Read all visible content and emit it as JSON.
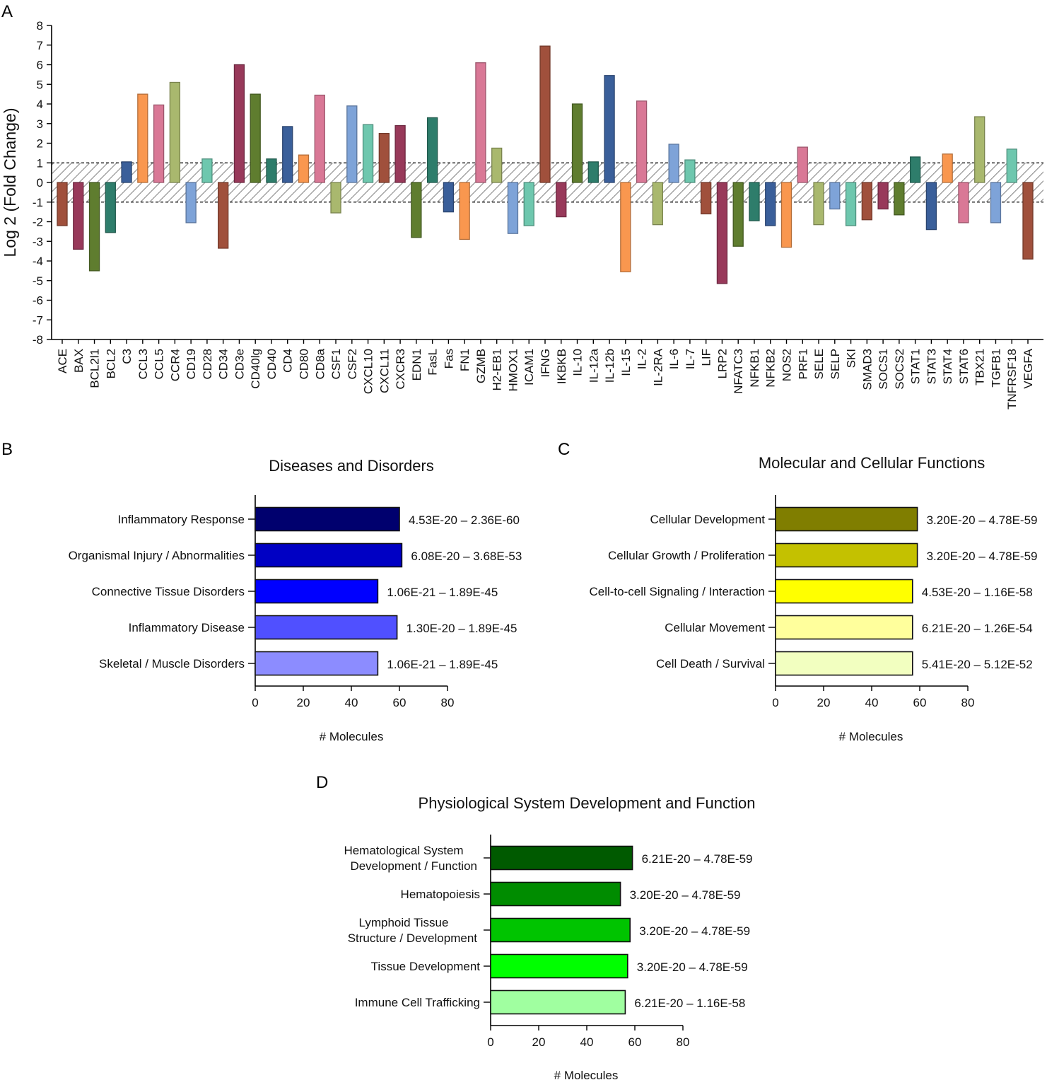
{
  "panels": {
    "a": "A",
    "b": "B",
    "c": "C",
    "d": "D"
  },
  "chart_data": [
    {
      "type": "bar",
      "panel": "A",
      "ylabel": "Log 2 (Fold Change)",
      "ylim": [
        -8,
        8
      ],
      "yticks": [
        8,
        7,
        6,
        5,
        4,
        3,
        2,
        1,
        0,
        -1,
        -2,
        -3,
        -4,
        -5,
        -6,
        -7,
        -8
      ],
      "threshold_band": [
        -1,
        1
      ],
      "palette": [
        "#a0503c",
        "#98395a",
        "#5f7d2f",
        "#2e7d6b",
        "#3a5f9a",
        "#f9974f",
        "#d97896",
        "#a9b86e",
        "#7ea3d8",
        "#6ec7ae"
      ],
      "categories": [
        "ACE",
        "BAX",
        "BCL2l1",
        "BCL2",
        "C3",
        "CCL3",
        "CCL5",
        "CCR4",
        "CD19",
        "CD28",
        "CD34",
        "CD3e",
        "CD40lg",
        "CD40",
        "CD4",
        "CD80",
        "CD8a",
        "CSF1",
        "CSF2",
        "CXCL10",
        "CXCL11",
        "CXCR3",
        "EDN1",
        "FasL",
        "Fas",
        "FN1",
        "GZMB",
        "H2-EB1",
        "HMOX1",
        "ICAM1",
        "IFNG",
        "IKBKB",
        "IL-10",
        "IL-12a",
        "IL-12b",
        "IL-15",
        "IL-2",
        "IL-2RA",
        "IL-6",
        "IL-7",
        "LIF",
        "LRP2",
        "NFATC3",
        "NFKB1",
        "NFKB2",
        "NOS2",
        "PRF1",
        "SELE",
        "SELP",
        "SKI",
        "SMAD3",
        "SOCS1",
        "SOCS2",
        "STAT1",
        "STAT3",
        "STAT4",
        "STAT6",
        "TBX21",
        "TGFB1",
        "TNFRSF18",
        "VEGFA"
      ],
      "values": [
        -2.2,
        -3.4,
        -4.5,
        -2.55,
        1.05,
        4.5,
        3.95,
        5.1,
        -2.05,
        1.2,
        -3.35,
        6.0,
        4.5,
        1.2,
        2.85,
        1.4,
        4.45,
        -1.55,
        3.9,
        2.95,
        2.5,
        2.9,
        -2.8,
        3.3,
        -1.5,
        -2.9,
        6.1,
        1.75,
        -2.6,
        -2.2,
        6.95,
        -1.75,
        4.0,
        1.05,
        5.45,
        -4.55,
        4.15,
        -2.15,
        1.95,
        1.15,
        -1.6,
        -5.15,
        -3.25,
        -1.95,
        -2.2,
        -3.3,
        1.8,
        -2.15,
        -1.35,
        -2.2,
        -1.9,
        -1.35,
        -1.65,
        1.3,
        -2.4,
        1.45,
        -2.05,
        3.35,
        -2.05,
        1.7,
        -3.9
      ]
    },
    {
      "type": "bar",
      "orientation": "horizontal",
      "panel": "B",
      "title": "Diseases and Disorders",
      "xlabel": "# Molecules",
      "xlim": [
        0,
        80
      ],
      "xticks": [
        0,
        20,
        40,
        60,
        80
      ],
      "categories": [
        "Inflammatory Response",
        "Organismal Injury / Abnormalities",
        "Connective Tissue Disorders",
        "Inflammatory Disease",
        "Skeletal / Muscle Disorders"
      ],
      "values": [
        60,
        61,
        51,
        59,
        51
      ],
      "pvalue_ranges": [
        "4.53E-20 – 2.36E-60",
        "6.08E-20 – 3.68E-53",
        "1.06E-21 – 1.89E-45",
        "1.30E-20 – 1.89E-45",
        "1.06E-21 – 1.89E-45"
      ],
      "colors": [
        "#00006e",
        "#0000c4",
        "#0000ff",
        "#5050ff",
        "#8c8cff"
      ]
    },
    {
      "type": "bar",
      "orientation": "horizontal",
      "panel": "C",
      "title": "Molecular and Cellular Functions",
      "xlabel": "# Molecules",
      "xlim": [
        0,
        80
      ],
      "xticks": [
        0,
        20,
        40,
        60,
        80
      ],
      "categories": [
        "Cellular Development",
        "Cellular Growth / Proliferation",
        "Cell-to-cell Signaling / Interaction",
        "Cellular Movement",
        "Cell Death / Survival"
      ],
      "values": [
        59,
        59,
        57,
        57,
        57
      ],
      "pvalue_ranges": [
        "3.20E-20 – 4.78E-59",
        "3.20E-20 – 4.78E-59",
        "4.53E-20 – 1.16E-58",
        "6.21E-20 – 1.26E-54",
        "5.41E-20 – 5.12E-52"
      ],
      "colors": [
        "#807e00",
        "#c4c100",
        "#ffff00",
        "#ffff9c",
        "#f2ffc0"
      ]
    },
    {
      "type": "bar",
      "orientation": "horizontal",
      "panel": "D",
      "title": "Physiological System Development and Function",
      "xlabel": "# Molecules",
      "xlim": [
        0,
        80
      ],
      "xticks": [
        0,
        20,
        40,
        60,
        80
      ],
      "categories": [
        [
          "Hematological System",
          "Development / Function"
        ],
        [
          "Hematopoiesis"
        ],
        [
          "Lymphoid Tissue",
          "Structure / Development"
        ],
        [
          "Tissue Development"
        ],
        [
          "Immune Cell Trafficking"
        ]
      ],
      "values": [
        59,
        54,
        58,
        57,
        56
      ],
      "pvalue_ranges": [
        "6.21E-20 – 4.78E-59",
        "3.20E-20 – 4.78E-59",
        "3.20E-20 – 4.78E-59",
        "3.20E-20 – 4.78E-59",
        "6.21E-20 – 1.16E-58"
      ],
      "colors": [
        "#005a00",
        "#008c00",
        "#00c400",
        "#00ff00",
        "#a0ffa0"
      ]
    }
  ]
}
